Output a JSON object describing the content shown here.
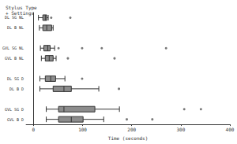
{
  "chart_data": {
    "type": "boxplot",
    "orientation": "horizontal",
    "ylabel": "Stylus Type\n+ Settings",
    "xlabel": "Time (seconds)",
    "categories": [
      "DL SG NL",
      "DL B NL",
      null,
      "GVL SG NL",
      "GVL B NL",
      null,
      "DL SG D",
      "DL B D",
      null,
      "GVL SG D",
      "GVL B D"
    ],
    "boxes": [
      [
        10,
        19,
        24,
        27,
        30
      ],
      [
        12,
        19,
        27,
        37,
        40
      ],
      null,
      [
        14,
        21,
        29,
        34,
        43
      ],
      [
        16,
        24,
        32,
        40,
        46
      ],
      null,
      [
        13,
        24,
        35,
        45,
        64
      ],
      [
        13,
        40,
        62,
        77,
        133
      ],
      null,
      [
        26,
        51,
        62,
        125,
        175
      ],
      [
        26,
        51,
        77,
        101,
        143
      ]
    ],
    "outliers": [
      [
        36,
        75
      ],
      [],
      null,
      [
        51,
        99,
        139,
        270
      ],
      [
        70,
        165
      ],
      null,
      [
        99
      ],
      [
        174
      ],
      null,
      [
        307,
        341
      ],
      [
        190,
        242
      ]
    ],
    "color": "#8c8c8c",
    "xlim": [
      -15,
      400
    ],
    "xticks": [
      0,
      100,
      200,
      300,
      400
    ],
    "grid": false
  }
}
